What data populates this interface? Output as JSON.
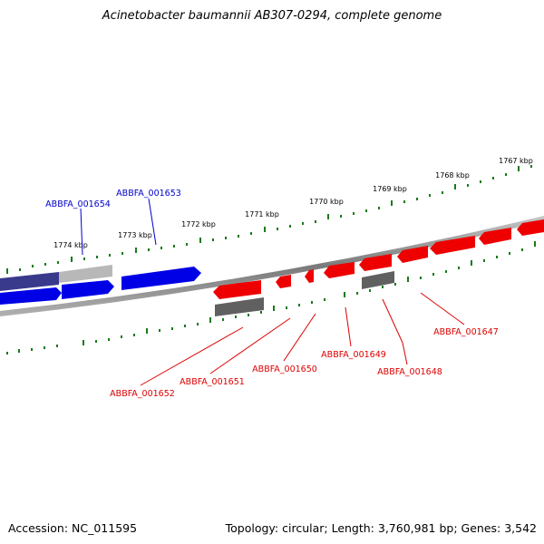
{
  "title": "Acinetobacter baumannii AB307-0294, complete genome",
  "footer": {
    "accession": "Accession: NC_011595",
    "topology": "Topology: circular; Length: 3,760,981 bp; Genes: 3,542"
  },
  "colors": {
    "forward_gene": "#0000e6",
    "forward_gene_dark": "#3a3a8c",
    "reverse_gene": "#ee0000",
    "pseudo_gene": "#606060",
    "pseudo_gene_light": "#b8b8b8",
    "tick": "#1a7a1a",
    "backbone": "#8a8a8a"
  },
  "scale_labels": [
    "1767 kbp",
    "1768 kbp",
    "1769 kbp",
    "1770 kbp",
    "1771 kbp",
    "1772 kbp",
    "1773 kbp",
    "1774 kbp"
  ],
  "gene_labels": {
    "forward": [
      "ABBFA_001654",
      "ABBFA_001653"
    ],
    "reverse": [
      "ABBFA_001652",
      "ABBFA_001651",
      "ABBFA_001650",
      "ABBFA_001649",
      "ABBFA_001648",
      "ABBFA_001647"
    ]
  }
}
